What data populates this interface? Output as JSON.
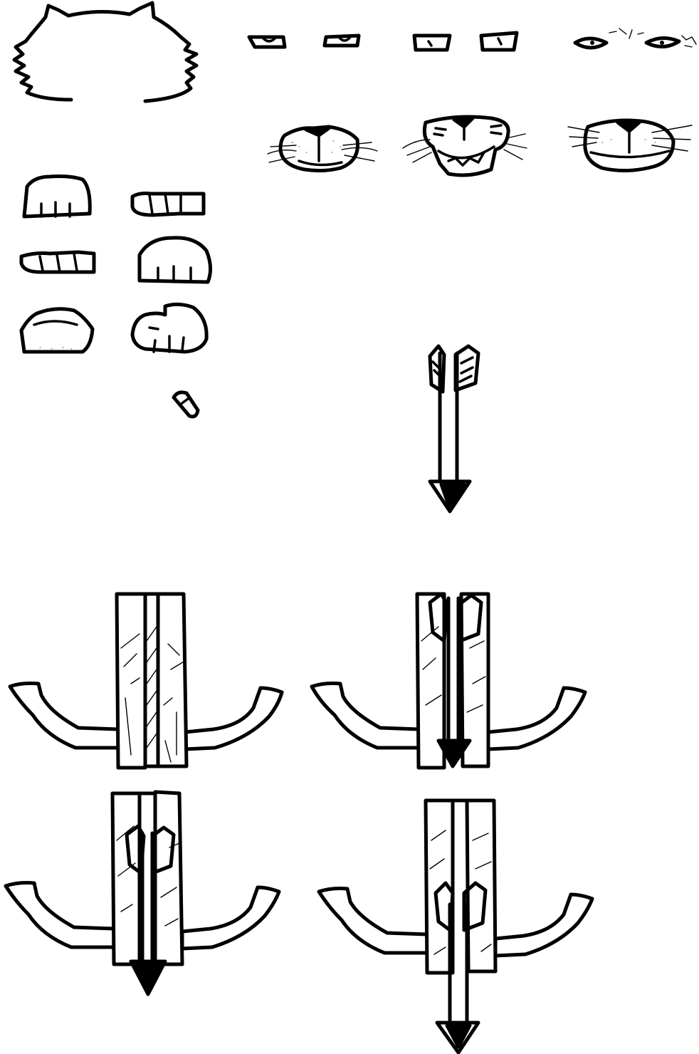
{
  "sheet": {
    "background": "#ffffff",
    "ink": "#000000",
    "assets": [
      "head-outline",
      "eyes-neutral-1",
      "eyes-neutral-2",
      "eyes-narrowed",
      "muzzle-neutral",
      "muzzle-snarl",
      "muzzle-smile",
      "paw-front-1",
      "paw-side-1",
      "paw-side-2",
      "paw-front-2",
      "paw-pad-1",
      "paw-pad-2",
      "claw-fragment",
      "arrow",
      "crossbow-empty",
      "crossbow-arrow-raised",
      "crossbow-arrow-mid",
      "crossbow-arrow-fired"
    ]
  }
}
